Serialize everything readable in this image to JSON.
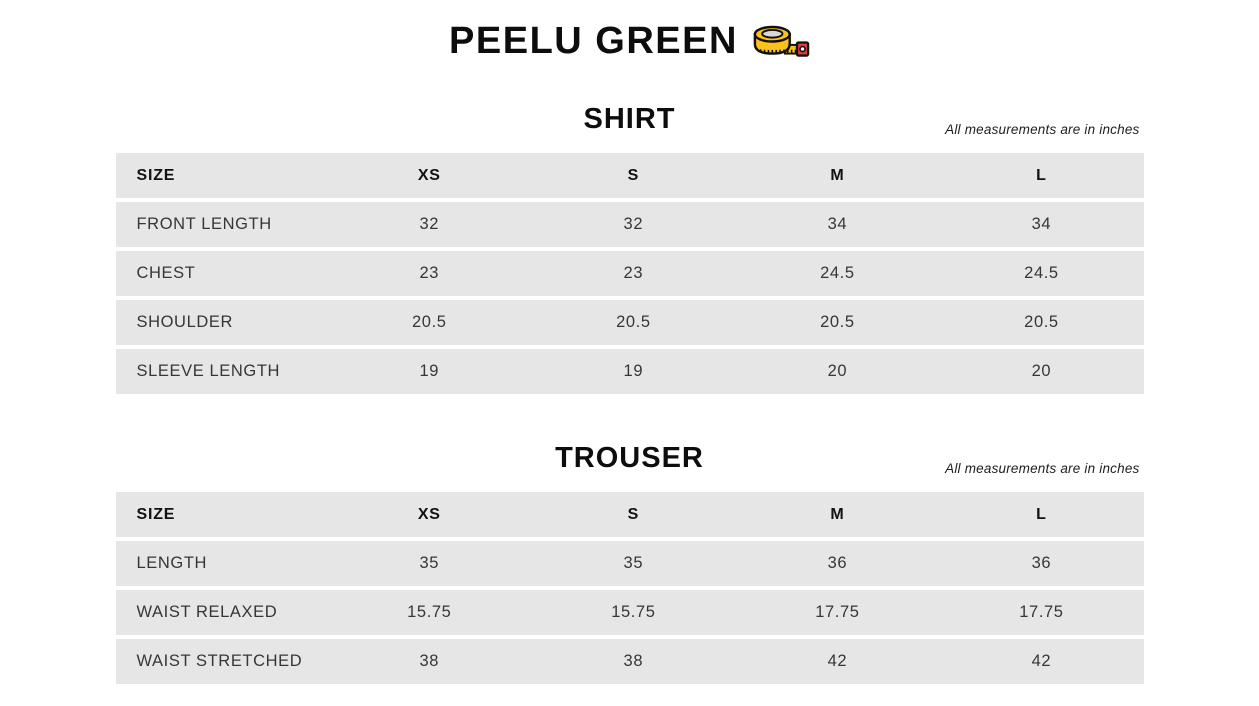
{
  "page": {
    "title": "PEELU GREEN",
    "icon": "measuring-tape-icon"
  },
  "colors": {
    "row_background": "#e6e6e6",
    "header_text": "#121212",
    "body_text": "#363636",
    "tape_yellow": "#fbc21b",
    "tape_red": "#dd3c3c",
    "tape_inner_gray": "#d8d8d8"
  },
  "chart_data": [
    {
      "type": "table",
      "title": "SHIRT",
      "note": "All measurements are in inches",
      "columns": [
        "SIZE",
        "XS",
        "S",
        "M",
        "L"
      ],
      "rows": [
        {
          "label": "FRONT LENGTH",
          "values": [
            "32",
            "32",
            "34",
            "34"
          ]
        },
        {
          "label": "CHEST",
          "values": [
            "23",
            "23",
            "24.5",
            "24.5"
          ]
        },
        {
          "label": "SHOULDER",
          "values": [
            "20.5",
            "20.5",
            "20.5",
            "20.5"
          ]
        },
        {
          "label": "SLEEVE LENGTH",
          "values": [
            "19",
            "19",
            "20",
            "20"
          ]
        }
      ]
    },
    {
      "type": "table",
      "title": "TROUSER",
      "note": "All measurements are in inches",
      "columns": [
        "SIZE",
        "XS",
        "S",
        "M",
        "L"
      ],
      "rows": [
        {
          "label": "LENGTH",
          "values": [
            "35",
            "35",
            "36",
            "36"
          ]
        },
        {
          "label": "WAIST RELAXED",
          "values": [
            "15.75",
            "15.75",
            "17.75",
            "17.75"
          ]
        },
        {
          "label": "WAIST STRETCHED",
          "values": [
            "38",
            "38",
            "42",
            "42"
          ]
        }
      ]
    }
  ]
}
